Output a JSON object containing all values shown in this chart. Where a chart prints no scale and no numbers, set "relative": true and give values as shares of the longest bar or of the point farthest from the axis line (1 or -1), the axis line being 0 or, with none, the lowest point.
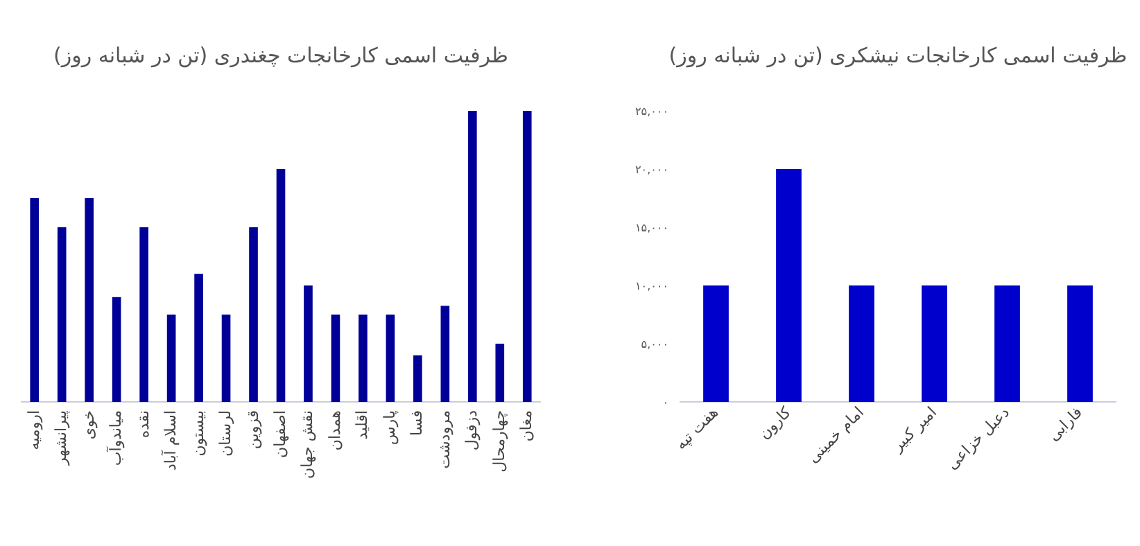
{
  "chart_data": [
    {
      "type": "bar",
      "title": "ظرفیت اسمی کارخانجات چغندری (تن در شبانه روز)",
      "relative": true,
      "color": "#000099",
      "categories": [
        "ارومیه",
        "پیرانشهر",
        "خوی",
        "میاندوآب",
        "نقده",
        "اسلام آباد",
        "بیستون",
        "لرستان",
        "قزوین",
        "اصفهان",
        "نقش جهان",
        "همدان",
        "اقلید",
        "پارس",
        "فسا",
        "مرودشت",
        "دزفول",
        "چهارمحال",
        "مغان"
      ],
      "values": [
        0.7,
        0.6,
        0.7,
        0.36,
        0.6,
        0.3,
        0.44,
        0.3,
        0.6,
        0.8,
        0.4,
        0.3,
        0.3,
        0.3,
        0.16,
        0.33,
        1,
        0.2,
        1
      ]
    },
    {
      "type": "bar",
      "title": "ظرفیت اسمی کارخانجات نیشکری (تن در شبانه روز)",
      "color": "#0000cc",
      "categories": [
        "هفت تپه",
        "کارون",
        "امام خمینی",
        "امیر کبیر",
        "دعبل خزاعی",
        "فارابی"
      ],
      "values": [
        10000,
        20000,
        10000,
        10000,
        10000,
        10000
      ],
      "ylim": [
        0,
        25000
      ],
      "yticks": [
        {
          "value": 0,
          "label": "۰"
        },
        {
          "value": 5000,
          "label": "۵,۰۰۰"
        },
        {
          "value": 10000,
          "label": "۱۰,۰۰۰"
        },
        {
          "value": 15000,
          "label": "۱۵,۰۰۰"
        },
        {
          "value": 20000,
          "label": "۲۰,۰۰۰"
        },
        {
          "value": 25000,
          "label": "۲۵,۰۰۰"
        }
      ]
    }
  ]
}
